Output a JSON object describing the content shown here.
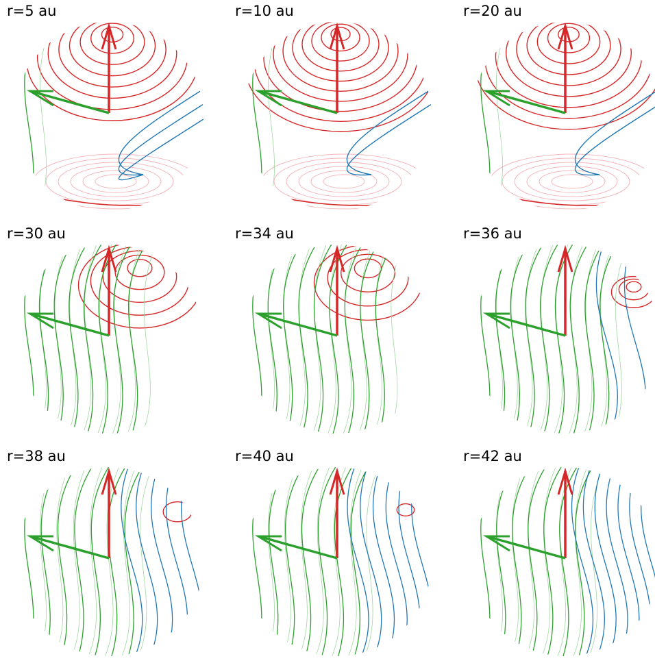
{
  "colors": {
    "red": "#d62728",
    "pink": "#f4b6bb",
    "green": "#2ca02c",
    "blue": "#1f77b4"
  },
  "panels": [
    {
      "label": "r=5 au",
      "red": 0.7,
      "blue": 0.18,
      "green": 0.1
    },
    {
      "label": "r=10 au",
      "red": 0.8,
      "blue": 0.12,
      "green": 0.08
    },
    {
      "label": "r=20 au",
      "red": 0.78,
      "blue": 0.12,
      "green": 0.1
    },
    {
      "label": "r=30 au",
      "red": 0.45,
      "blue": 0.0,
      "green": 0.55
    },
    {
      "label": "r=34 au",
      "red": 0.35,
      "blue": 0.0,
      "green": 0.65
    },
    {
      "label": "r=36 au",
      "red": 0.25,
      "blue": 0.12,
      "green": 0.63
    },
    {
      "label": "r=38 au",
      "red": 0.12,
      "blue": 0.35,
      "green": 0.53
    },
    {
      "label": "r=40 au",
      "red": 0.03,
      "blue": 0.45,
      "green": 0.52
    },
    {
      "label": "r=42 au",
      "red": 0.0,
      "blue": 0.5,
      "green": 0.5
    }
  ]
}
